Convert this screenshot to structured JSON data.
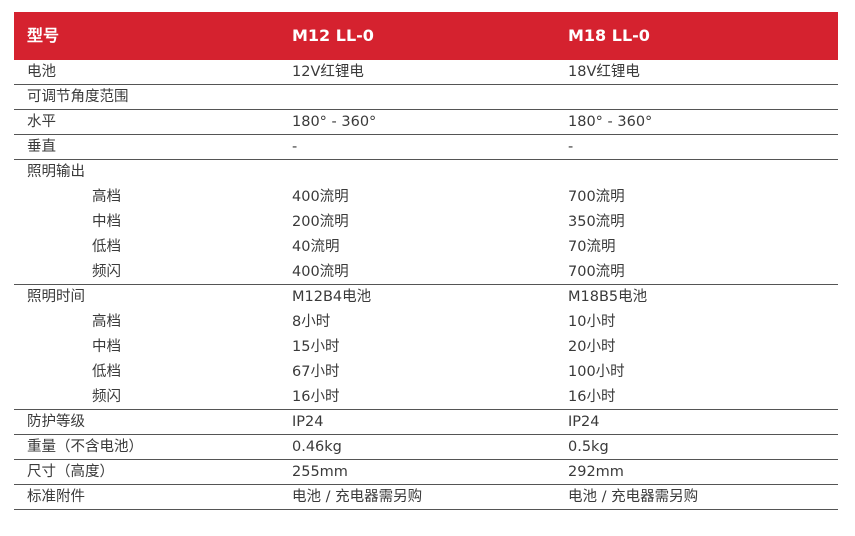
{
  "header": {
    "label": "型号",
    "model_a": "M12 LL-0",
    "model_b": "M18 LL-0"
  },
  "rows": [
    {
      "label": "电池",
      "a": "12V红锂电",
      "b": "18V红锂电",
      "indent": false,
      "sep": true
    },
    {
      "label": "可调节角度范围",
      "a": "",
      "b": "",
      "indent": false,
      "sep": true
    },
    {
      "label": "水平",
      "a": "180° - 360°",
      "b": "180° - 360°",
      "indent": false,
      "sep": true
    },
    {
      "label": "垂直",
      "a": "-",
      "b": "-",
      "indent": false,
      "sep": true
    },
    {
      "label": "照明输出",
      "a": "",
      "b": "",
      "indent": false,
      "sep": false
    },
    {
      "label": "高档",
      "a": "400流明",
      "b": "700流明",
      "indent": true,
      "sep": false
    },
    {
      "label": "中档",
      "a": "200流明",
      "b": "350流明",
      "indent": true,
      "sep": false
    },
    {
      "label": "低档",
      "a": "40流明",
      "b": "70流明",
      "indent": true,
      "sep": false
    },
    {
      "label": "频闪",
      "a": "400流明",
      "b": "700流明",
      "indent": true,
      "sep": true
    },
    {
      "label": "照明时间",
      "a": "M12B4电池",
      "b": "M18B5电池",
      "indent": false,
      "sep": false
    },
    {
      "label": "高档",
      "a": "8小时",
      "b": "10小时",
      "indent": true,
      "sep": false
    },
    {
      "label": "中档",
      "a": "15小时",
      "b": "20小时",
      "indent": true,
      "sep": false
    },
    {
      "label": "低档",
      "a": "67小时",
      "b": "100小时",
      "indent": true,
      "sep": false
    },
    {
      "label": "频闪",
      "a": "16小时",
      "b": "16小时",
      "indent": true,
      "sep": true
    },
    {
      "label": "防护等级",
      "a": "IP24",
      "b": "IP24",
      "indent": false,
      "sep": true
    },
    {
      "label": "重量（不含电池）",
      "a": "0.46kg",
      "b": "0.5kg",
      "indent": false,
      "sep": true
    },
    {
      "label": "尺寸（高度）",
      "a": "255mm",
      "b": "292mm",
      "indent": false,
      "sep": true
    },
    {
      "label": "标准附件",
      "a": "电池 / 充电器需另购",
      "b": "电池 / 充电器需另购",
      "indent": false,
      "sep": true
    }
  ]
}
